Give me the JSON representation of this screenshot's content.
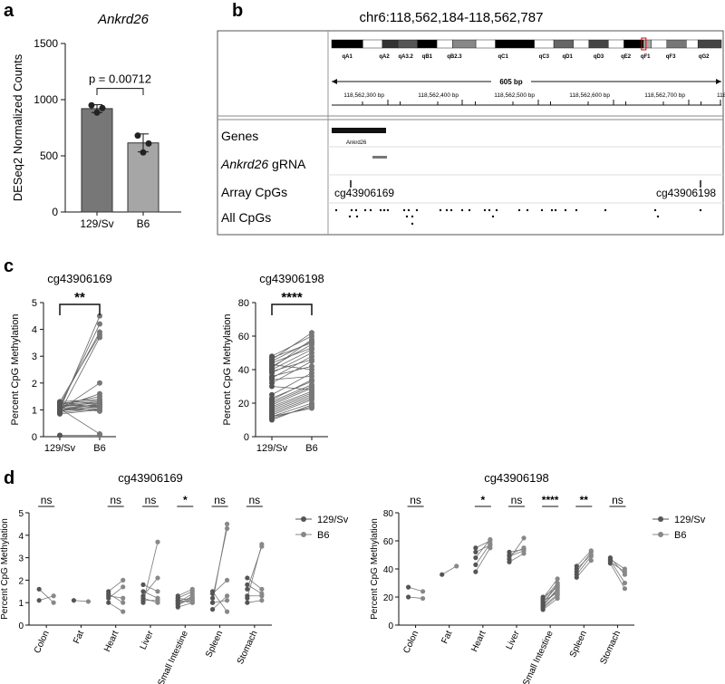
{
  "panels": {
    "a": "a",
    "b": "b",
    "c": "c",
    "d": "d"
  },
  "chart_data": [
    {
      "panel": "a",
      "type": "bar",
      "title": "Ankrd26",
      "ylabel": "DESeq2 Normalized Counts",
      "ylim": [
        0,
        1500
      ],
      "yticks": [
        0,
        500,
        1000,
        1500
      ],
      "categories": [
        "129/Sv",
        "B6"
      ],
      "values": [
        920,
        615
      ],
      "errors": [
        35,
        80
      ],
      "points": [
        [
          950,
          885,
          925
        ],
        [
          680,
          530,
          610
        ]
      ],
      "bar_colors": [
        "#777777",
        "#a6a6a6"
      ],
      "annotation": "p = 0.00712"
    },
    {
      "panel": "b",
      "type": "table",
      "title": "chr6:118,562,184-118,562,787",
      "bands": [
        "qA1",
        "qA2",
        "qA3.2",
        "qB1",
        "qB2.3",
        "qC1",
        "qC3",
        "qD1",
        "qD3",
        "qE2",
        "qF1",
        "qF3",
        "qG2"
      ],
      "span_label": "605 bp",
      "ruler_ticks": [
        "118,562,300 bp",
        "118,562,400 bp",
        "118,562,500 bp",
        "118,562,600 bp",
        "118,562,700 bp",
        "118,5"
      ],
      "tracks": [
        {
          "name": "Genes",
          "feature": "Ankrd26"
        },
        {
          "name_italic": "Ankrd26",
          "name_rest": " gRNA"
        },
        {
          "name": "Array CpGs",
          "probes": [
            "cg43906169",
            "cg43906198"
          ]
        },
        {
          "name": "All CpGs"
        }
      ]
    },
    {
      "panel": "c",
      "type": "line",
      "title": "cg43906169",
      "ylabel": "Percent CpG Methylation",
      "categories": [
        "129/Sv",
        "B6"
      ],
      "ylim": [
        0,
        5
      ],
      "yticks": [
        0,
        1,
        2,
        3,
        4,
        5
      ],
      "significance": "**",
      "pairs": [
        [
          1.0,
          4.5
        ],
        [
          1.1,
          4.2
        ],
        [
          1.2,
          3.9
        ],
        [
          0.9,
          3.7
        ],
        [
          1.3,
          3.8
        ],
        [
          1.0,
          2.0
        ],
        [
          1.1,
          1.6
        ],
        [
          1.2,
          1.3
        ],
        [
          0.95,
          1.25
        ],
        [
          1.05,
          1.2
        ],
        [
          1.15,
          1.15
        ],
        [
          1.25,
          1.1
        ],
        [
          0.9,
          1.05
        ],
        [
          1.0,
          1.0
        ],
        [
          1.1,
          0.95
        ],
        [
          1.2,
          1.3
        ],
        [
          1.3,
          1.4
        ],
        [
          1.0,
          1.1
        ],
        [
          0.85,
          1.0
        ],
        [
          1.15,
          1.25
        ],
        [
          1.05,
          0.1
        ],
        [
          0.05,
          0.05
        ],
        [
          1.0,
          1.2
        ],
        [
          1.2,
          1.5
        ],
        [
          1.1,
          1.3
        ],
        [
          0.95,
          1.15
        ],
        [
          1.25,
          1.35
        ],
        [
          1.0,
          1.1
        ]
      ]
    },
    {
      "panel": "c",
      "type": "line",
      "title": "cg43906198",
      "ylabel": "Percent CpG Methylation",
      "categories": [
        "129/Sv",
        "B6"
      ],
      "ylim": [
        0,
        80
      ],
      "yticks": [
        0,
        20,
        40,
        60,
        80
      ],
      "significance": "****",
      "pairs": [
        [
          48,
          60
        ],
        [
          45,
          57
        ],
        [
          42,
          55
        ],
        [
          40,
          52
        ],
        [
          38,
          50
        ],
        [
          35,
          48
        ],
        [
          32,
          45
        ],
        [
          47,
          56
        ],
        [
          44,
          53
        ],
        [
          41,
          58
        ],
        [
          39,
          46
        ],
        [
          36,
          42
        ],
        [
          25,
          38
        ],
        [
          22,
          34
        ],
        [
          20,
          30
        ],
        [
          18,
          27
        ],
        [
          16,
          25
        ],
        [
          14,
          23
        ],
        [
          12,
          20
        ],
        [
          11,
          18
        ],
        [
          13,
          22
        ],
        [
          15,
          24
        ],
        [
          17,
          26
        ],
        [
          19,
          29
        ],
        [
          21,
          31
        ],
        [
          23,
          33
        ],
        [
          12,
          17
        ],
        [
          10,
          19
        ],
        [
          46,
          62
        ],
        [
          43,
          40
        ],
        [
          34,
          36
        ],
        [
          30,
          28
        ]
      ]
    },
    {
      "panel": "d",
      "type": "line",
      "title": "cg43906169",
      "ylabel": "Percent CpG Methylation",
      "ylim": [
        0,
        5
      ],
      "yticks": [
        0,
        1,
        2,
        3,
        4,
        5
      ],
      "categories": [
        "Colon",
        "Fat",
        "Heart",
        "Liver",
        "Small Intestine",
        "Spleen",
        "Stomach"
      ],
      "significance": [
        "ns",
        "",
        "ns",
        "ns",
        "*",
        "ns",
        "ns"
      ],
      "series": [
        {
          "name": "129/Sv"
        },
        {
          "name": "B6"
        }
      ],
      "pairs": [
        [
          [
            1.6,
            1.0
          ],
          [
            1.1,
            1.3
          ]
        ],
        [
          [
            1.1,
            1.05
          ]
        ],
        [
          [
            1.5,
            2.0
          ],
          [
            1.2,
            1.7
          ],
          [
            1.0,
            0.6
          ],
          [
            1.3,
            1.2
          ],
          [
            1.4,
            1.0
          ]
        ],
        [
          [
            1.0,
            3.7
          ],
          [
            1.3,
            2.1
          ],
          [
            1.5,
            1.2
          ],
          [
            1.2,
            1.0
          ],
          [
            1.8,
            1.5
          ],
          [
            1.1,
            1.1
          ]
        ],
        [
          [
            0.9,
            1.3
          ],
          [
            1.0,
            1.4
          ],
          [
            1.1,
            1.2
          ],
          [
            1.2,
            1.5
          ],
          [
            0.8,
            1.0
          ],
          [
            1.0,
            1.1
          ],
          [
            1.3,
            1.6
          ],
          [
            1.1,
            1.0
          ],
          [
            0.9,
            1.2
          ],
          [
            1.2,
            1.1
          ]
        ],
        [
          [
            1.0,
            4.5
          ],
          [
            1.2,
            4.3
          ],
          [
            1.4,
            2.0
          ],
          [
            1.0,
            1.1
          ],
          [
            0.7,
            1.3
          ],
          [
            1.5,
            0.6
          ]
        ],
        [
          [
            1.2,
            3.6
          ],
          [
            1.6,
            3.5
          ],
          [
            1.3,
            1.3
          ],
          [
            1.8,
            1.4
          ],
          [
            1.0,
            1.1
          ],
          [
            2.1,
            1.6
          ]
        ]
      ]
    },
    {
      "panel": "d",
      "type": "line",
      "title": "cg43906198",
      "ylabel": "Percent CpG Methylation",
      "ylim": [
        0,
        80
      ],
      "yticks": [
        0,
        20,
        40,
        60,
        80
      ],
      "categories": [
        "Colon",
        "Fat",
        "Heart",
        "Liver",
        "Small Intestine",
        "Spleen",
        "Stomach"
      ],
      "significance": [
        "ns",
        "",
        "*",
        "ns",
        "****",
        "**",
        "ns"
      ],
      "series": [
        {
          "name": "129/Sv"
        },
        {
          "name": "B6"
        }
      ],
      "pairs": [
        [
          [
            27,
            24
          ],
          [
            20,
            19
          ]
        ],
        [
          [
            36,
            42
          ]
        ],
        [
          [
            38,
            55
          ],
          [
            43,
            58
          ],
          [
            48,
            61
          ],
          [
            52,
            57
          ],
          [
            55,
            60
          ]
        ],
        [
          [
            47,
            62
          ],
          [
            50,
            55
          ],
          [
            52,
            54
          ],
          [
            45,
            51
          ],
          [
            49,
            53
          ]
        ],
        [
          [
            12,
            21
          ],
          [
            14,
            25
          ],
          [
            16,
            28
          ],
          [
            18,
            30
          ],
          [
            13,
            22
          ],
          [
            15,
            24
          ],
          [
            19,
            33
          ],
          [
            20,
            27
          ],
          [
            17,
            23
          ],
          [
            11,
            19
          ],
          [
            14,
            26
          ],
          [
            16,
            29
          ]
        ],
        [
          [
            34,
            46
          ],
          [
            36,
            49
          ],
          [
            38,
            52
          ],
          [
            40,
            50
          ],
          [
            42,
            53
          ]
        ],
        [
          [
            47,
            40
          ],
          [
            45,
            38
          ],
          [
            44,
            26
          ],
          [
            48,
            36
          ],
          [
            46,
            30
          ]
        ]
      ]
    }
  ]
}
